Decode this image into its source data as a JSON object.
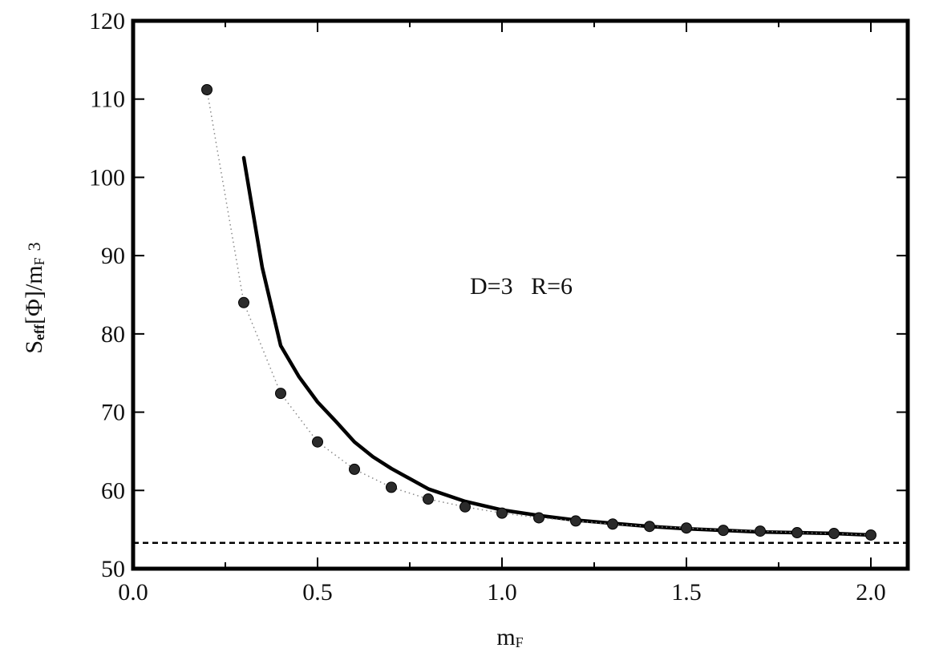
{
  "chart_data": {
    "type": "line",
    "title": "",
    "xlabel": {
      "main": "m",
      "sub": "F"
    },
    "ylabel": {
      "s": "S",
      "eff": "eff",
      "rest": "[Φ]/m",
      "sub": "F",
      "pow": "3"
    },
    "xlim": [
      0.0,
      2.1
    ],
    "ylim": [
      50,
      120
    ],
    "xticks": [
      0.0,
      0.5,
      1.0,
      1.5,
      2.0
    ],
    "xtick_labels": [
      "0.0",
      "0.5",
      "1.0",
      "1.5",
      "2.0"
    ],
    "yticks": [
      50,
      60,
      70,
      80,
      90,
      100,
      110,
      120
    ],
    "ytick_labels": [
      "50",
      "60",
      "70",
      "80",
      "90",
      "100",
      "110",
      "120"
    ],
    "annotation": "D=3   R=6",
    "grid": false,
    "colors": {
      "ink": "#000000",
      "points": "#2b2b2b",
      "dotted": "#888888"
    },
    "series": [
      {
        "style": "solid-thick",
        "x": [
          0.3,
          0.35,
          0.4,
          0.45,
          0.5,
          0.55,
          0.6,
          0.65,
          0.7,
          0.8,
          0.9,
          1.0,
          1.1,
          1.2,
          1.3,
          1.4,
          1.5,
          1.6,
          1.7,
          1.8,
          1.9,
          2.0
        ],
        "y": [
          102.5,
          88.5,
          78.5,
          74.5,
          71.3,
          68.8,
          66.2,
          64.3,
          62.8,
          60.2,
          58.6,
          57.5,
          56.8,
          56.2,
          55.8,
          55.4,
          55.1,
          54.9,
          54.7,
          54.6,
          54.5,
          54.3
        ]
      },
      {
        "style": "points-dotted",
        "x": [
          0.2,
          0.3,
          0.4,
          0.5,
          0.6,
          0.7,
          0.8,
          0.9,
          1.0,
          1.1,
          1.2,
          1.3,
          1.4,
          1.5,
          1.6,
          1.7,
          1.8,
          1.9,
          2.0
        ],
        "y": [
          111.2,
          84.0,
          72.4,
          66.2,
          62.7,
          60.4,
          58.9,
          57.9,
          57.1,
          56.5,
          56.1,
          55.7,
          55.4,
          55.2,
          54.9,
          54.8,
          54.6,
          54.5,
          54.3
        ]
      },
      {
        "style": "dashed-horizontal",
        "x": [
          0.0,
          2.1
        ],
        "y": [
          53.3,
          53.3
        ]
      }
    ]
  }
}
